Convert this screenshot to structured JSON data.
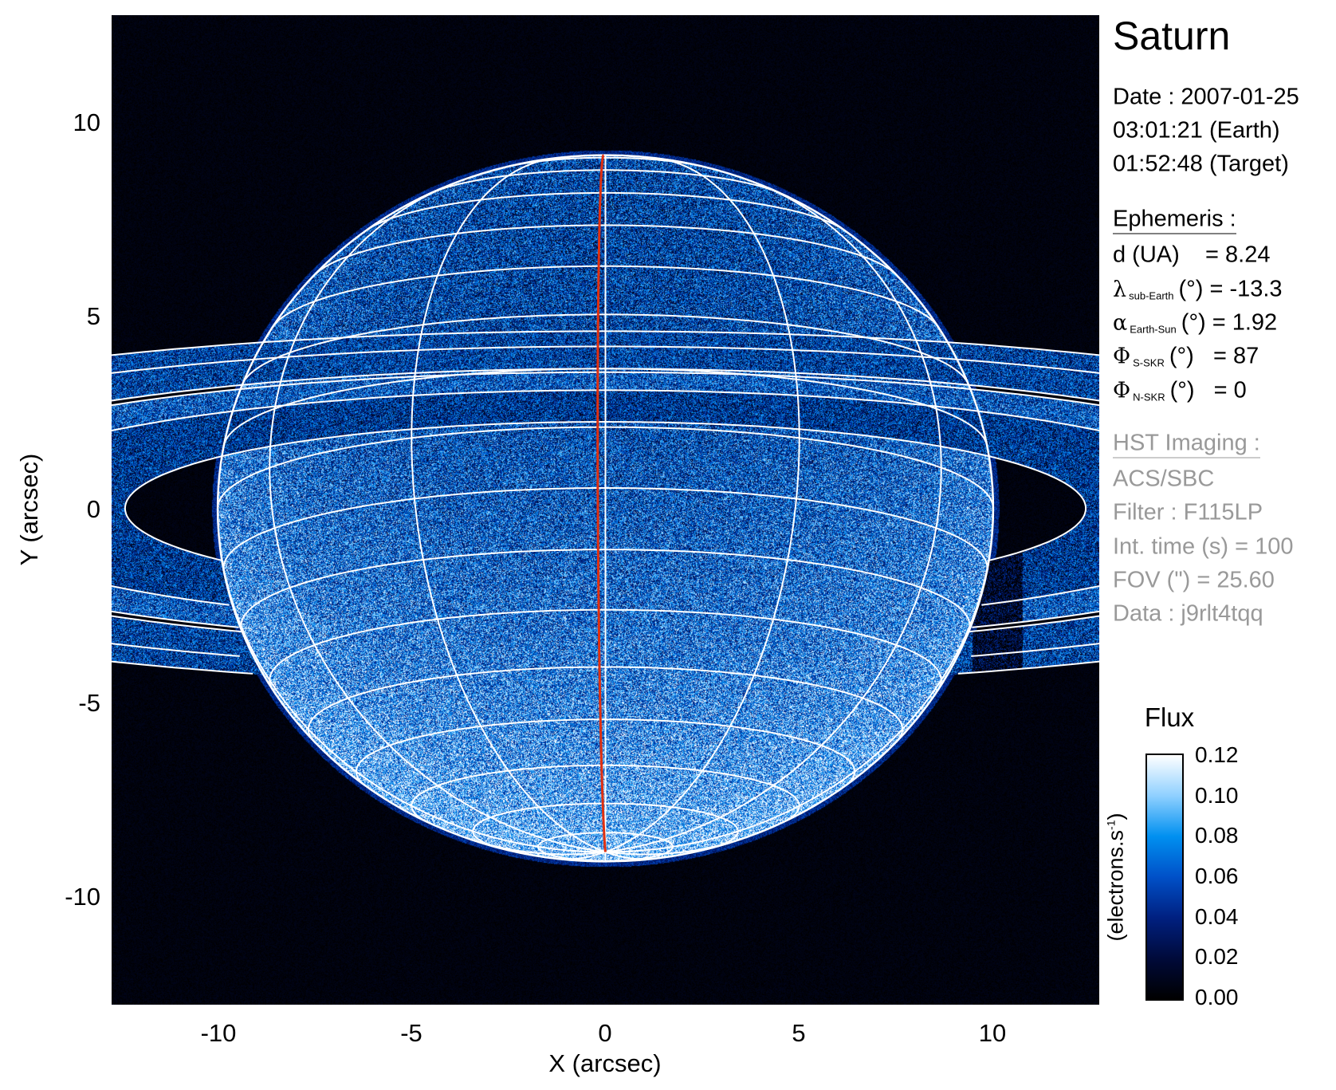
{
  "chart_data": {
    "type": "heatmap",
    "title": "Saturn",
    "xlabel": "X (arcsec)",
    "ylabel": "Y (arcsec)",
    "xlim": [
      -12.8,
      12.8
    ],
    "ylim": [
      -12.8,
      12.8
    ],
    "xticks": [
      "-10",
      "-5",
      "0",
      "5",
      "10"
    ],
    "yticks": [
      "10",
      "5",
      "0",
      "-5",
      "-10"
    ],
    "grid": false,
    "colorbar": {
      "label": "Flux",
      "unit_main": "(electrons.s",
      "unit_sup": "-1",
      "unit_close": ")",
      "range": [
        0,
        0.12
      ],
      "ticks": [
        "0.12",
        "0.10",
        "0.08",
        "0.06",
        "0.04",
        "0.02",
        "0.00"
      ],
      "tick_values": [
        0.12,
        0.1,
        0.08,
        0.06,
        0.04,
        0.02,
        0.0
      ],
      "colormap": [
        "#000000",
        "#000a3a",
        "#002080",
        "#0050c8",
        "#0090f0",
        "#8fd0ff",
        "#ffffff"
      ]
    },
    "overlay": {
      "grid_color": "#ffffff",
      "central_meridian_color": "#e03010",
      "sub_earth_latitude_deg": -13.3
    }
  },
  "info": {
    "target": "Saturn",
    "date": "Date : 2007-01-25",
    "time_earth": "03:01:21 (Earth)",
    "time_target": "01:52:48 (Target)",
    "ephemeris_header": "Ephemeris :",
    "ephemeris": [
      {
        "sym": "",
        "sub": "",
        "text": "d (UA)    = 8.24"
      },
      {
        "sym": "λ",
        "sub": "sub-Earth",
        "text": "(°) = -13.3"
      },
      {
        "sym": "α",
        "sub": "Earth-Sun",
        "text": "(°) = 1.92"
      },
      {
        "sym": "Φ",
        "sub": "S-SKR",
        "text": "(°)   = 87"
      },
      {
        "sym": "Φ",
        "sub": "N-SKR",
        "text": "(°)   = 0"
      }
    ],
    "imaging_header": "HST Imaging :",
    "imaging": [
      "ACS/SBC",
      "Filter : F115LP",
      "Int. time (s) = 100",
      "FOV (\") = 25.60",
      "Data : j9rlt4tqq"
    ]
  }
}
